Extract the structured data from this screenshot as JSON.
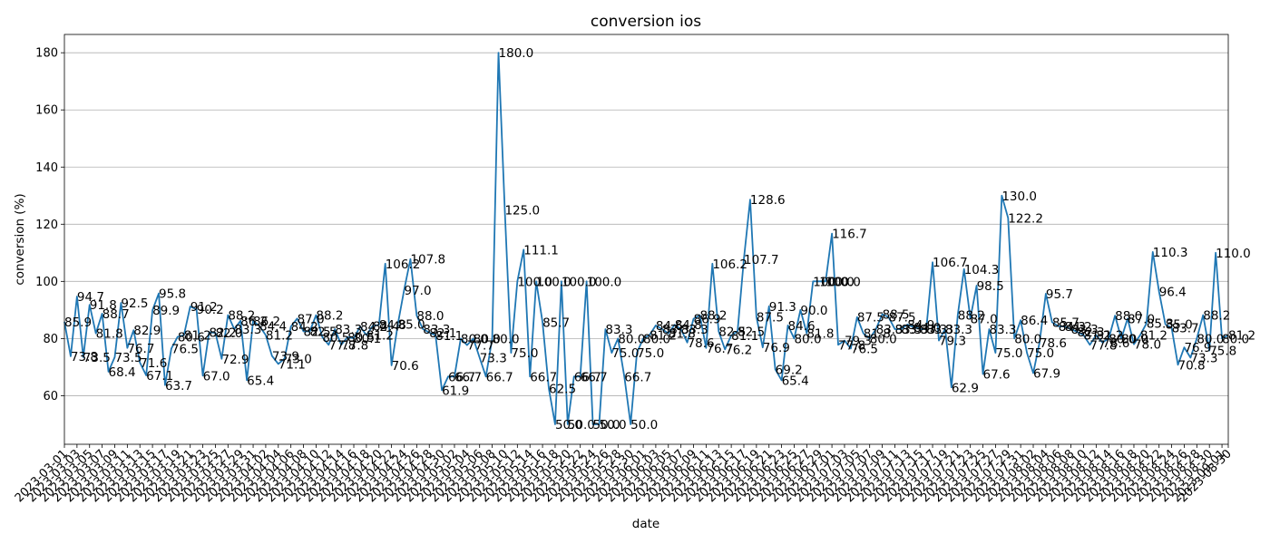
{
  "chart_data": {
    "type": "line",
    "title": "conversion ios",
    "xlabel": "date",
    "ylabel": "conversion (%)",
    "ylim": [
      43,
      186.4
    ],
    "yticks": [
      60,
      80,
      100,
      120,
      140,
      160,
      180
    ],
    "grid": "horizontal",
    "color": "#1f77b4",
    "x_start": "2023-03-01",
    "x_end": "2023-08-30",
    "xtick_step_days": 2,
    "series": [
      {
        "values": [
          85.9,
          73.8,
          94.7,
          73.5,
          91.8,
          81.8,
          88.7,
          68.4,
          73.5,
          92.5,
          76.7,
          82.9,
          71.6,
          67.1,
          89.9,
          95.8,
          63.7,
          76.5,
          80.6,
          81.2,
          91.2,
          90.2,
          67.0,
          82.2,
          82.0,
          72.9,
          88.2,
          83.3,
          86.2,
          65.4,
          86.2,
          84.4,
          81.2,
          73.9,
          71.1,
          73.0,
          84.2,
          87.0,
          82.5,
          82.5,
          88.2,
          80.5,
          77.8,
          83.3,
          77.8,
          80.5,
          80.1,
          84.2,
          81.2,
          84.4,
          84.8,
          106.2,
          70.6,
          85.0,
          97.0,
          107.8,
          88.0,
          83.3,
          82.1,
          81.1,
          61.9,
          66.7,
          66.7,
          80.0,
          77.7,
          80.0,
          73.3,
          66.7,
          80.0,
          180.0,
          125.0,
          75.0,
          100.0,
          111.1,
          66.7,
          100.0,
          85.7,
          62.5,
          50.0,
          100.0,
          50.0,
          66.7,
          66.7,
          100.0,
          50.0,
          50.0,
          83.3,
          75.0,
          80.0,
          66.7,
          50.0,
          75.0,
          80.0,
          81.2,
          84.6,
          83.3,
          81.8,
          84.8,
          83.3,
          78.6,
          86.9,
          88.2,
          76.7,
          106.2,
          82.5,
          76.2,
          81.1,
          82.5,
          107.7,
          128.6,
          87.5,
          76.9,
          91.3,
          69.2,
          65.4,
          84.6,
          80.0,
          90.0,
          81.8,
          100.0,
          100.0,
          100.0,
          116.7,
          77.8,
          79.3,
          76.5,
          87.5,
          81.8,
          80.0,
          83.3,
          88.5,
          87.5,
          83.3,
          83.3,
          84.9,
          84.0,
          83.3,
          83.3,
          106.7,
          79.3,
          83.3,
          62.9,
          88.2,
          104.3,
          87.0,
          98.5,
          67.6,
          83.3,
          75.0,
          130.0,
          122.2,
          80.0,
          86.4,
          75.0,
          67.9,
          78.6,
          95.7,
          85.7,
          84.3,
          84.2,
          83.3,
          82.3,
          81.2,
          77.8,
          81.2,
          78.6,
          80.0,
          88.0,
          80.0,
          87.0,
          78.0,
          81.2,
          85.3,
          110.3,
          96.4,
          85.0,
          83.7,
          70.8,
          76.9,
          73.3,
          80.0,
          88.2,
          75.8,
          110.0,
          80.0,
          81.2
        ]
      }
    ]
  }
}
